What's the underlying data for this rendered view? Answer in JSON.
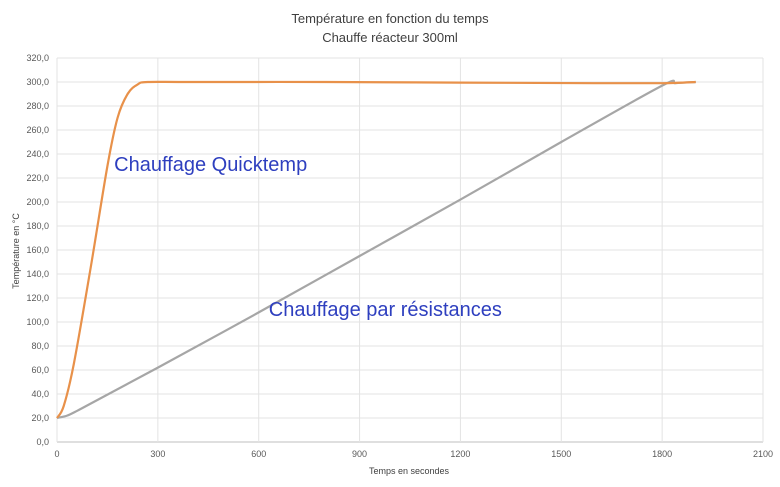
{
  "chart_data": {
    "type": "line",
    "title": "Température en fonction du temps",
    "subtitle": "Chauffe réacteur 300ml",
    "xlabel": "Temps en secondes",
    "ylabel": "Température en °C",
    "xlim": [
      0,
      2100
    ],
    "ylim": [
      0,
      320
    ],
    "x_ticks": [
      0,
      300,
      600,
      900,
      1200,
      1500,
      1800,
      2100
    ],
    "x_tick_labels": [
      "0",
      "300",
      "600",
      "900",
      "1200",
      "1500",
      "1800",
      "2100"
    ],
    "y_ticks": [
      0,
      20,
      40,
      60,
      80,
      100,
      120,
      140,
      160,
      180,
      200,
      220,
      240,
      260,
      280,
      300,
      320
    ],
    "y_tick_labels": [
      "0,0",
      "20,0",
      "40,0",
      "60,0",
      "80,0",
      "100,0",
      "120,0",
      "140,0",
      "160,0",
      "180,0",
      "200,0",
      "220,0",
      "240,0",
      "260,0",
      "280,0",
      "300,0",
      "320,0"
    ],
    "grid": true,
    "series": [
      {
        "name": "Chauffage Quicktemp",
        "color": "#e8914a",
        "points": [
          [
            0,
            20
          ],
          [
            20,
            30
          ],
          [
            50,
            65
          ],
          [
            100,
            145
          ],
          [
            150,
            230
          ],
          [
            180,
            270
          ],
          [
            210,
            290
          ],
          [
            240,
            298
          ],
          [
            270,
            300
          ],
          [
            400,
            300
          ],
          [
            800,
            300
          ],
          [
            1200,
            299.5
          ],
          [
            1600,
            299
          ],
          [
            1800,
            299
          ],
          [
            1900,
            300
          ]
        ]
      },
      {
        "name": "Chauffage par résistances",
        "color": "#a6a6a6",
        "points": [
          [
            0,
            20
          ],
          [
            30,
            22
          ],
          [
            60,
            26
          ],
          [
            100,
            32
          ],
          [
            300,
            62
          ],
          [
            600,
            108
          ],
          [
            900,
            155
          ],
          [
            1200,
            202
          ],
          [
            1500,
            250
          ],
          [
            1800,
            297
          ],
          [
            1840,
            299
          ],
          [
            1900,
            300
          ]
        ]
      }
    ],
    "annotations": [
      {
        "text": "Chauffage Quicktemp",
        "x": 170,
        "y": 226
      },
      {
        "text": "Chauffage par résistances",
        "x": 630,
        "y": 105
      }
    ]
  }
}
